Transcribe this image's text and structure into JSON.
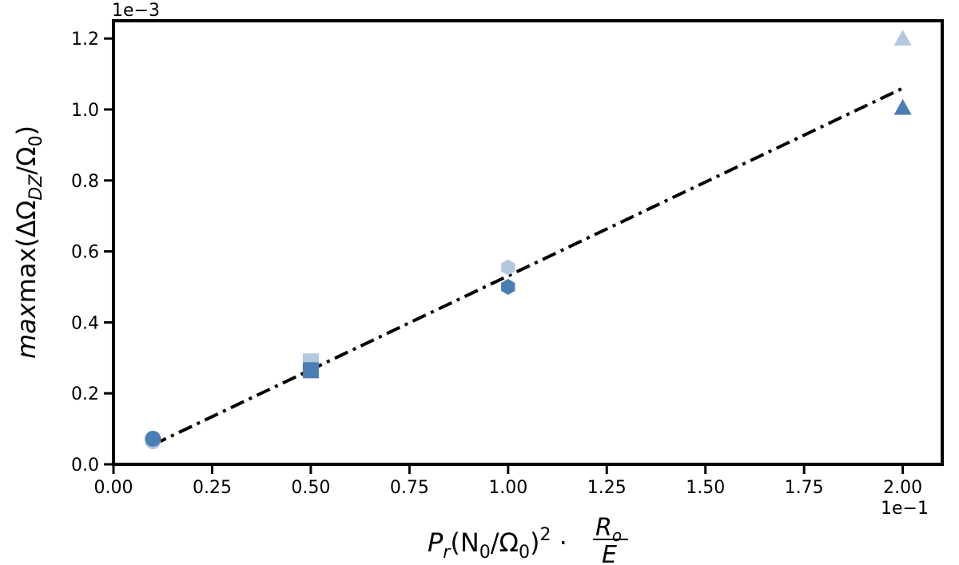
{
  "chart_data": {
    "type": "scatter",
    "title": "",
    "xlabel": {
      "main": "P",
      "main_sub": "r",
      "mid": "(N",
      "mid_sub": "0",
      "mid2": "/Ω",
      "mid2_sub": "0",
      "close": ")",
      "sup": "2",
      "dot": " · ",
      "frac_num": "R",
      "frac_num_sub": "o",
      "frac_den": "E"
    },
    "ylabel": {
      "pre": "max(ΔΩ",
      "sub": "DZ",
      "post": "/Ω",
      "post_sub": "0",
      "close": ")"
    },
    "x_offset_text": "1e−1",
    "y_offset_text": "1e−3",
    "xlim": [
      0.0,
      2.1
    ],
    "ylim": [
      0.0,
      1.25
    ],
    "xticks": [
      0.0,
      0.25,
      0.5,
      0.75,
      1.0,
      1.25,
      1.5,
      1.75,
      2.0
    ],
    "xtick_labels": [
      "0.00",
      "0.25",
      "0.50",
      "0.75",
      "1.00",
      "1.25",
      "1.50",
      "1.75",
      "2.00"
    ],
    "yticks": [
      0.0,
      0.2,
      0.4,
      0.6,
      0.8,
      1.0,
      1.2
    ],
    "ytick_labels": [
      "0.0",
      "0.2",
      "0.4",
      "0.6",
      "0.8",
      "1.0",
      "1.2"
    ],
    "grid": false,
    "legend": "none",
    "series": [
      {
        "color": "#b3c7de",
        "points": [
          {
            "x": 0.1,
            "y": 0.065,
            "marker": "circle"
          },
          {
            "x": 0.5,
            "y": 0.29,
            "marker": "square"
          },
          {
            "x": 1.0,
            "y": 0.555,
            "marker": "hexagon"
          },
          {
            "x": 2.0,
            "y": 1.2,
            "marker": "triangle"
          }
        ]
      },
      {
        "color": "#4a7eb4",
        "points": [
          {
            "x": 0.1,
            "y": 0.072,
            "marker": "circle"
          },
          {
            "x": 0.5,
            "y": 0.265,
            "marker": "square"
          },
          {
            "x": 1.0,
            "y": 0.5,
            "marker": "hexagon"
          },
          {
            "x": 2.0,
            "y": 1.005,
            "marker": "triangle"
          }
        ]
      }
    ],
    "fit_line": {
      "style": "dashdot",
      "color": "#000000",
      "points": [
        [
          0.1,
          0.055
        ],
        [
          2.0,
          1.06
        ]
      ]
    }
  }
}
